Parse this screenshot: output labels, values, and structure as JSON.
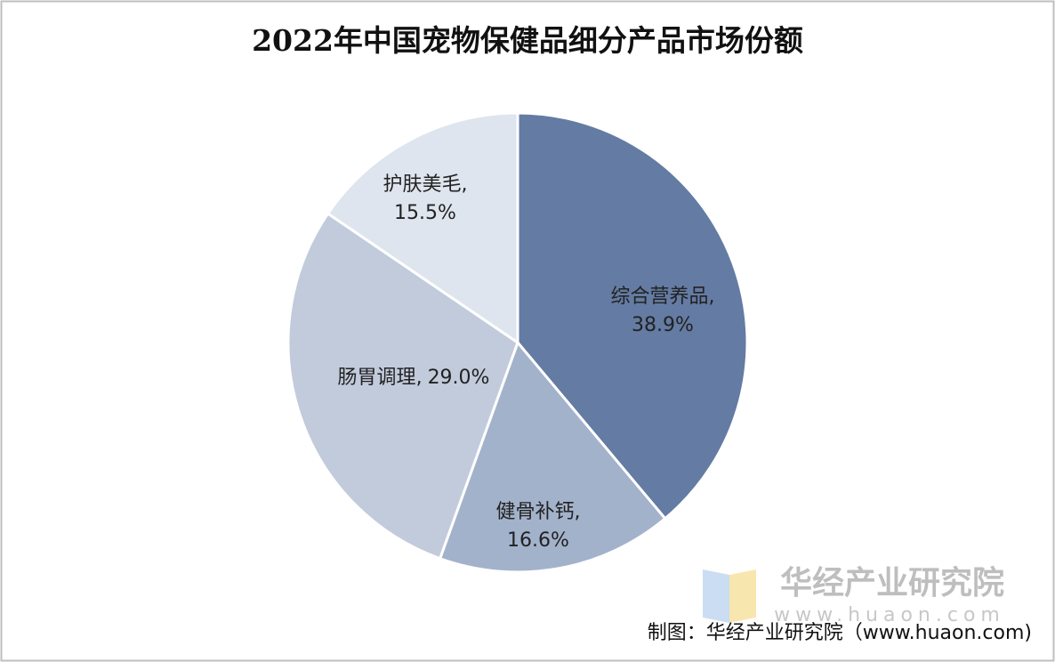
{
  "chart_data": {
    "type": "pie",
    "title": "2022年中国宠物保健品细分产品市场份额",
    "categories": [
      "综合营养品",
      "健骨补钙",
      "肠胃调理",
      "护肤美毛"
    ],
    "values": [
      38.9,
      16.6,
      29.0,
      15.5
    ],
    "value_labels": [
      "38.9%",
      "16.6%",
      "29.0%",
      "15.5%"
    ],
    "label_separator": ",",
    "colors": [
      "#647ba3",
      "#a3b2cb",
      "#c2cbdc",
      "#dfe5ee"
    ]
  },
  "watermark": {
    "name": "华经产业研究院",
    "url": "www.huaon.com"
  },
  "source": "制图：华经产业研究院（www.huaon.com)"
}
